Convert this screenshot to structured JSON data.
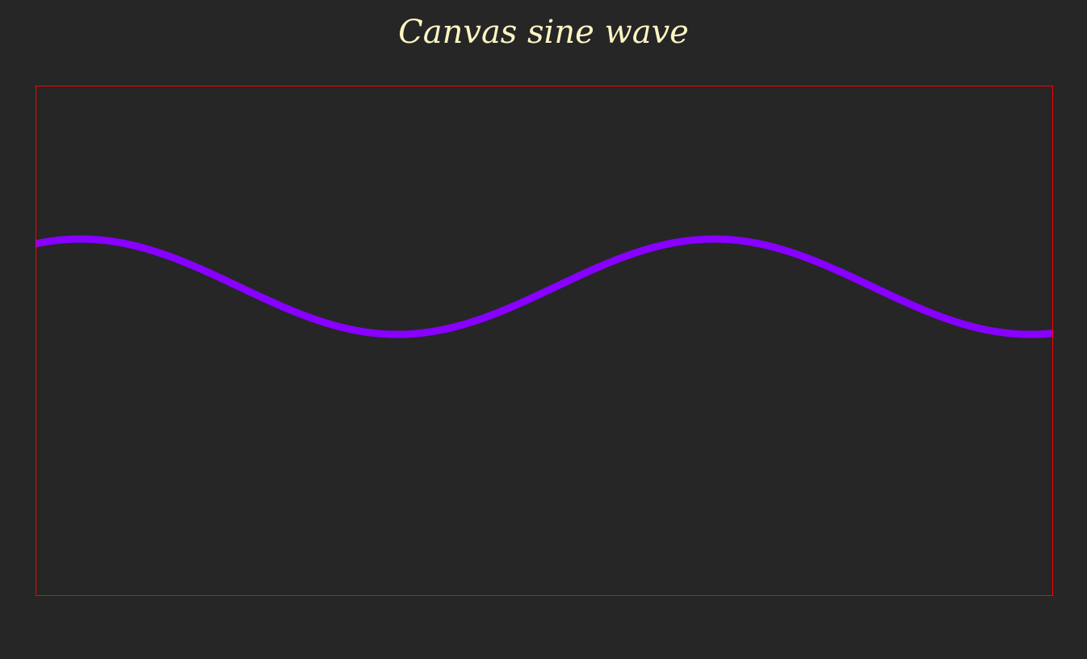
{
  "page": {
    "title": "Canvas sine wave",
    "title_color": "#fdf5c4",
    "background_color": "#262626"
  },
  "canvas": {
    "border_color": "#ff0000",
    "wave": {
      "color": "#8800ff",
      "amplitude_ratio": 0.0937,
      "center_ratio": 0.3937,
      "period_ratio": 0.6234,
      "phase_offset_ratio": -0.1125
    }
  }
}
